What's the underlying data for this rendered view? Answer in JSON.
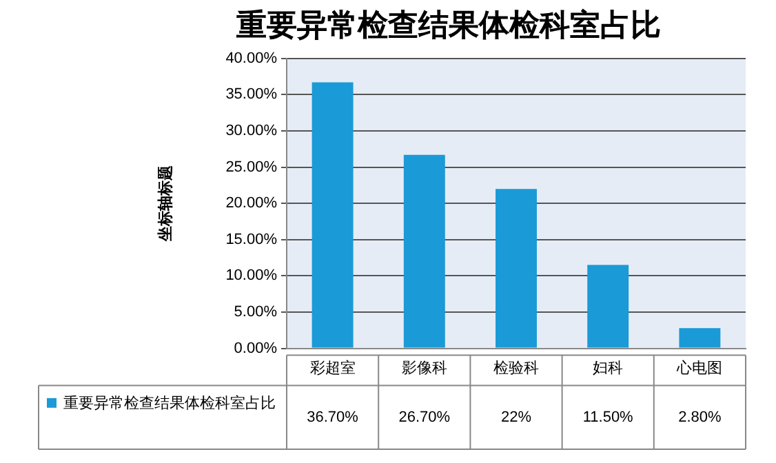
{
  "chart_data": {
    "type": "bar",
    "title": "重要异常检查结果体检科室占比",
    "ylabel": "坐标轴标题",
    "categories": [
      "彩超室",
      "影像科",
      "检验科",
      "妇科",
      "心电图"
    ],
    "series": [
      {
        "name": "重要异常检查结果体检科室占比",
        "color": "#1a9ad6",
        "values": [
          36.7,
          26.7,
          22,
          11.5,
          2.8
        ],
        "value_labels": [
          "36.70%",
          "26.70%",
          "22%",
          "11.50%",
          "2.80%"
        ]
      }
    ],
    "ylim": [
      0,
      40
    ],
    "yticks": [
      {
        "value": 0,
        "label": "0.00%"
      },
      {
        "value": 5,
        "label": "5.00%"
      },
      {
        "value": 10,
        "label": "10.00%"
      },
      {
        "value": 15,
        "label": "15.00%"
      },
      {
        "value": 20,
        "label": "20.00%"
      },
      {
        "value": 25,
        "label": "25.00%"
      },
      {
        "value": 30,
        "label": "30.00%"
      },
      {
        "value": 35,
        "label": "35.00%"
      },
      {
        "value": 40,
        "label": "40.00%"
      }
    ],
    "grid": "y",
    "legend": "bottom"
  }
}
